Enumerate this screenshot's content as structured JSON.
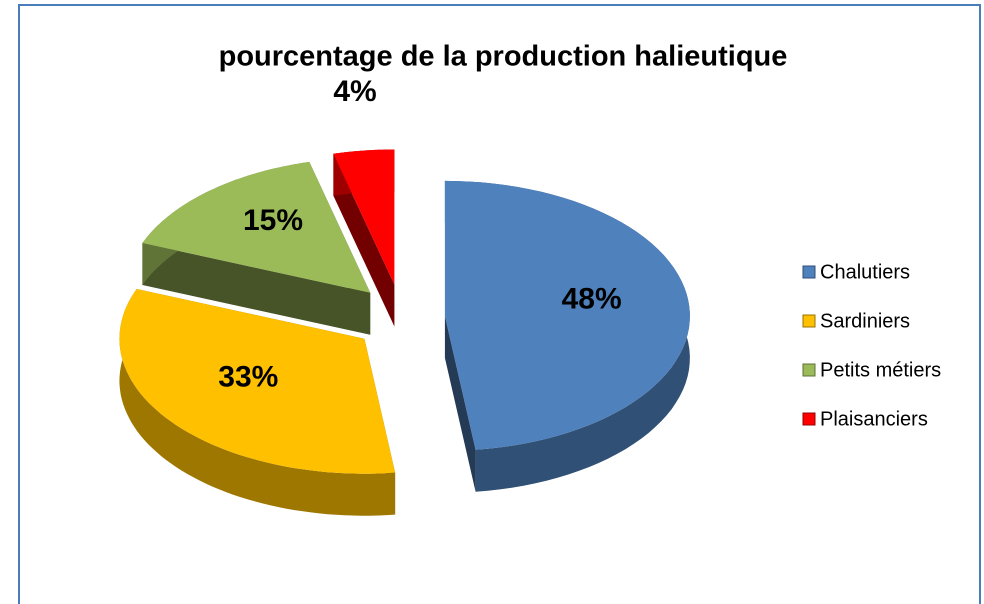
{
  "chart_data": {
    "type": "pie",
    "title": "pourcentage de la production halieutique",
    "categories": [
      "Chalutiers",
      "Sardiniers",
      "Petits métiers",
      "Plaisanciers"
    ],
    "values": [
      48,
      33,
      15,
      4
    ],
    "value_labels": [
      "48%",
      "33%",
      "15%",
      "4%"
    ],
    "colors": [
      "#4f81bd",
      "#ffc000",
      "#9bbb59",
      "#ff0000"
    ],
    "legend": "right"
  }
}
